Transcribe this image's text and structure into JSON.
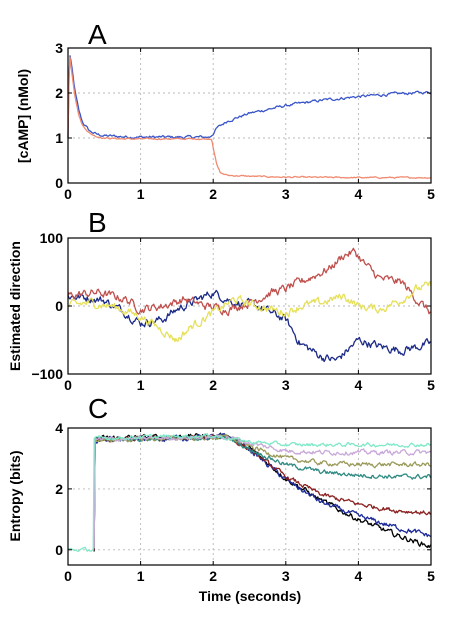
{
  "chart_data": [
    {
      "type": "line",
      "panel_label": "A",
      "ylabel": "[cAMP] (nMol)",
      "xlabel": "",
      "xlim": [
        0,
        5
      ],
      "ylim": [
        0,
        3
      ],
      "xticks": [
        "0",
        "1",
        "2",
        "3",
        "4",
        "5"
      ],
      "yticks": [
        "0",
        "1",
        "2",
        "3"
      ],
      "xtick_values": [
        0,
        1,
        2,
        3,
        4,
        5
      ],
      "ytick_values": [
        0,
        1,
        2,
        3
      ],
      "grid": true,
      "series": [
        {
          "color": "#3a55c8",
          "noise": 0.025,
          "x": [
            0,
            0.02,
            0.05,
            0.1,
            0.15,
            0.2,
            0.3,
            0.4,
            0.5,
            0.75,
            1.0,
            1.5,
            1.95,
            2.0,
            2.05,
            2.2,
            2.5,
            3.0,
            3.5,
            4.0,
            4.5,
            5.0
          ],
          "y": [
            1.0,
            2.9,
            2.6,
            2.0,
            1.6,
            1.35,
            1.15,
            1.08,
            1.05,
            1.03,
            1.02,
            1.02,
            1.02,
            1.1,
            1.22,
            1.38,
            1.55,
            1.72,
            1.84,
            1.92,
            1.98,
            2.02
          ]
        },
        {
          "color": "#f08a70",
          "noise": 0.012,
          "x": [
            0,
            0.02,
            0.05,
            0.1,
            0.15,
            0.2,
            0.3,
            0.4,
            0.5,
            0.75,
            1.0,
            1.5,
            1.98,
            2.0,
            2.05,
            2.1,
            2.2,
            2.5,
            3.0,
            4.0,
            5.0
          ],
          "y": [
            1.0,
            2.9,
            2.5,
            1.9,
            1.5,
            1.28,
            1.1,
            1.03,
            1.0,
            0.98,
            0.98,
            0.98,
            0.98,
            0.8,
            0.4,
            0.22,
            0.17,
            0.15,
            0.13,
            0.12,
            0.12
          ]
        }
      ]
    },
    {
      "type": "line",
      "panel_label": "B",
      "ylabel": "Estimated direction",
      "xlabel": "",
      "xlim": [
        0,
        5
      ],
      "ylim": [
        -100,
        100
      ],
      "xticks": [
        "0",
        "1",
        "2",
        "3",
        "4",
        "5"
      ],
      "yticks": [
        "−100",
        "0",
        "100"
      ],
      "xtick_values": [
        0,
        1,
        2,
        3,
        4,
        5
      ],
      "ytick_values": [
        -100,
        0,
        100
      ],
      "grid": true,
      "series": [
        {
          "color": "#1c2a88",
          "noise": 5,
          "x": [
            0,
            0.3,
            0.5,
            0.8,
            1.0,
            1.3,
            1.5,
            1.8,
            2.0,
            2.3,
            2.6,
            3.0,
            3.2,
            3.5,
            3.7,
            4.0,
            4.3,
            4.6,
            5.0
          ],
          "y": [
            15,
            12,
            8,
            -10,
            -25,
            -20,
            -5,
            10,
            20,
            5,
            0,
            -20,
            -55,
            -75,
            -80,
            -50,
            -60,
            -65,
            -55
          ]
        },
        {
          "color": "#c0504d",
          "noise": 5,
          "x": [
            0,
            0.4,
            0.8,
            1.0,
            1.3,
            1.6,
            1.9,
            2.2,
            2.5,
            2.8,
            3.0,
            3.3,
            3.6,
            3.8,
            3.95,
            4.1,
            4.3,
            4.6,
            4.8,
            5.0
          ],
          "y": [
            15,
            20,
            10,
            -5,
            0,
            10,
            0,
            -5,
            5,
            20,
            25,
            40,
            55,
            75,
            80,
            60,
            40,
            35,
            10,
            -10
          ]
        },
        {
          "color": "#e6e05a",
          "noise": 5,
          "x": [
            0,
            0.3,
            0.6,
            1.0,
            1.3,
            1.5,
            1.7,
            2.0,
            2.3,
            2.6,
            3.0,
            3.2,
            3.5,
            3.8,
            4.0,
            4.3,
            4.6,
            4.8,
            5.0
          ],
          "y": [
            0,
            5,
            0,
            -15,
            -35,
            -50,
            -30,
            -10,
            10,
            0,
            -10,
            0,
            5,
            15,
            0,
            -5,
            10,
            25,
            30
          ]
        }
      ]
    },
    {
      "type": "line",
      "panel_label": "C",
      "ylabel": "Entropy (bits)",
      "xlabel": "Time (seconds)",
      "xlim": [
        0,
        5
      ],
      "ylim": [
        -0.5,
        4
      ],
      "xticks": [
        "0",
        "1",
        "2",
        "3",
        "4",
        "5"
      ],
      "yticks": [
        "0",
        "2",
        "4"
      ],
      "xtick_values": [
        0,
        1,
        2,
        3,
        4,
        5
      ],
      "ytick_values": [
        0,
        2,
        4
      ],
      "grid": true,
      "series": [
        {
          "color": "#000000",
          "noise": 0.07,
          "x": [
            0.36,
            0.37,
            2.2,
            2.5,
            3.0,
            3.5,
            4.0,
            4.5,
            5.0
          ],
          "y": [
            0,
            3.65,
            3.75,
            3.35,
            2.35,
            1.6,
            1.0,
            0.5,
            0.1
          ]
        },
        {
          "color": "#1c2a9a",
          "noise": 0.07,
          "x": [
            0.36,
            0.37,
            2.2,
            2.5,
            3.0,
            3.5,
            4.0,
            4.5,
            5.0
          ],
          "y": [
            0,
            3.6,
            3.72,
            3.3,
            2.3,
            1.55,
            1.1,
            0.75,
            0.45
          ]
        },
        {
          "color": "#8a2020",
          "noise": 0.06,
          "x": [
            0.36,
            0.37,
            2.2,
            2.5,
            3.0,
            3.5,
            4.0,
            4.5,
            5.0
          ],
          "y": [
            0,
            3.6,
            3.7,
            3.3,
            2.4,
            1.8,
            1.5,
            1.3,
            1.2
          ]
        },
        {
          "color": "#2e8a82",
          "noise": 0.06,
          "x": [
            0.36,
            0.37,
            2.2,
            2.5,
            3.0,
            3.5,
            4.0,
            4.5,
            5.0
          ],
          "y": [
            0,
            3.6,
            3.7,
            3.3,
            2.8,
            2.55,
            2.45,
            2.4,
            2.4
          ]
        },
        {
          "color": "#9a9a5a",
          "noise": 0.06,
          "x": [
            0.36,
            0.37,
            2.2,
            2.5,
            3.0,
            3.5,
            4.0,
            4.5,
            5.0
          ],
          "y": [
            0,
            3.6,
            3.7,
            3.4,
            3.0,
            2.85,
            2.8,
            2.8,
            2.8
          ]
        },
        {
          "color": "#c8a8d8",
          "noise": 0.06,
          "x": [
            0.36,
            0.37,
            2.2,
            2.5,
            3.0,
            3.5,
            4.0,
            4.5,
            5.0
          ],
          "y": [
            0,
            3.62,
            3.72,
            3.5,
            3.25,
            3.2,
            3.2,
            3.2,
            3.2
          ]
        },
        {
          "color": "#80e8c8",
          "noise": 0.05,
          "x": [
            0,
            0.35,
            0.36,
            1.0,
            2.0,
            2.5,
            3.0,
            3.5,
            4.0,
            4.5,
            5.0
          ],
          "y": [
            0,
            0,
            3.65,
            3.7,
            3.75,
            3.55,
            3.45,
            3.45,
            3.45,
            3.45,
            3.45
          ]
        }
      ]
    }
  ]
}
